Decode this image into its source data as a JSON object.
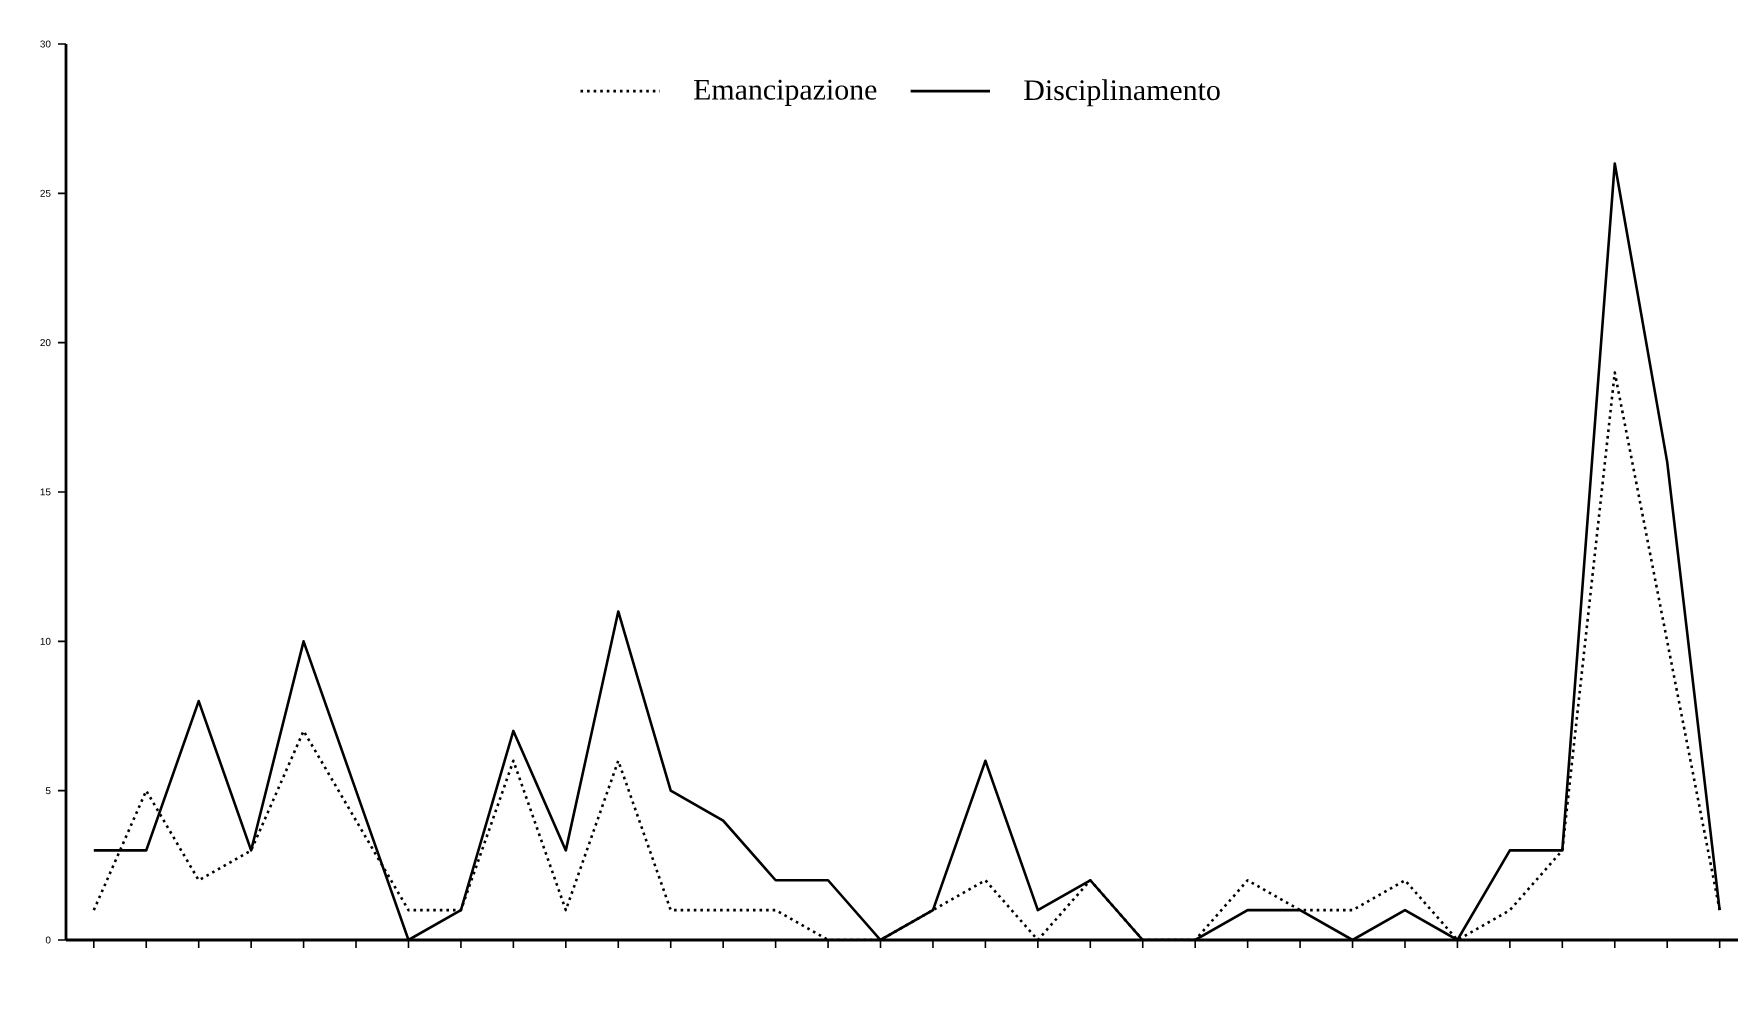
{
  "chart_data": {
    "type": "line",
    "categories": [
      null,
      null,
      null,
      null,
      null,
      null,
      null,
      null,
      null,
      null,
      null,
      null,
      null,
      null,
      null,
      null,
      null,
      null,
      null,
      null,
      null,
      null,
      null,
      null,
      null,
      null,
      null,
      null,
      null,
      null,
      null,
      null
    ],
    "series": [
      {
        "name": "Emancipazione",
        "color": "#000000",
        "line_style": "dotted",
        "values": [
          1,
          5,
          2,
          3,
          7,
          4,
          1,
          1,
          6,
          1,
          6,
          1,
          1,
          1,
          0,
          0,
          1,
          2,
          0,
          2,
          0,
          0,
          2,
          1,
          1,
          2,
          0,
          1,
          3,
          19,
          10,
          1
        ]
      },
      {
        "name": "Disciplinamento",
        "color": "#000000",
        "line_style": "solid",
        "values": [
          3,
          3,
          8,
          3,
          10,
          5,
          0,
          1,
          7,
          3,
          11,
          5,
          4,
          2,
          2,
          0,
          1,
          6,
          1,
          2,
          0,
          0,
          1,
          1,
          0,
          1,
          0,
          3,
          3,
          26,
          16,
          1
        ]
      }
    ],
    "ylim": [
      0,
      30
    ],
    "yticks": [
      0,
      5,
      10,
      15,
      20,
      25,
      30
    ],
    "legend": "top",
    "grid": false,
    "marker": "none"
  }
}
